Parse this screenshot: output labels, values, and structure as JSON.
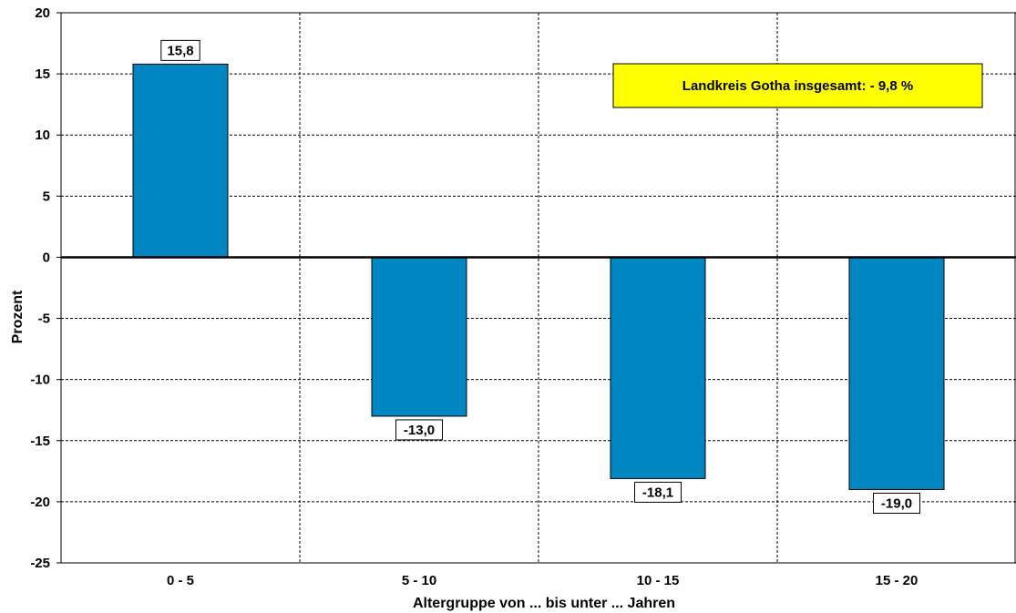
{
  "chart_data": {
    "type": "bar",
    "categories": [
      "0 - 5",
      "5 - 10",
      "10 - 15",
      "15 - 20"
    ],
    "values": [
      15.8,
      -13.0,
      -18.1,
      -19.0
    ],
    "data_labels": [
      "15,8",
      "-13,0",
      "-18,1",
      "-19,0"
    ],
    "title": "",
    "xlabel": "Altergruppe von ... bis unter ... Jahren",
    "ylabel": "Prozent",
    "ylim": [
      -25,
      20
    ],
    "yticks": [
      20,
      15,
      10,
      5,
      0,
      -5,
      -10,
      -15,
      -20,
      -25
    ],
    "grid": true,
    "bar_color": "#0087C1",
    "annotation": {
      "text": "Landkreis Gotha insgesamt: - 9,8 %",
      "background": "#FFFF00",
      "position": "top-right"
    }
  }
}
